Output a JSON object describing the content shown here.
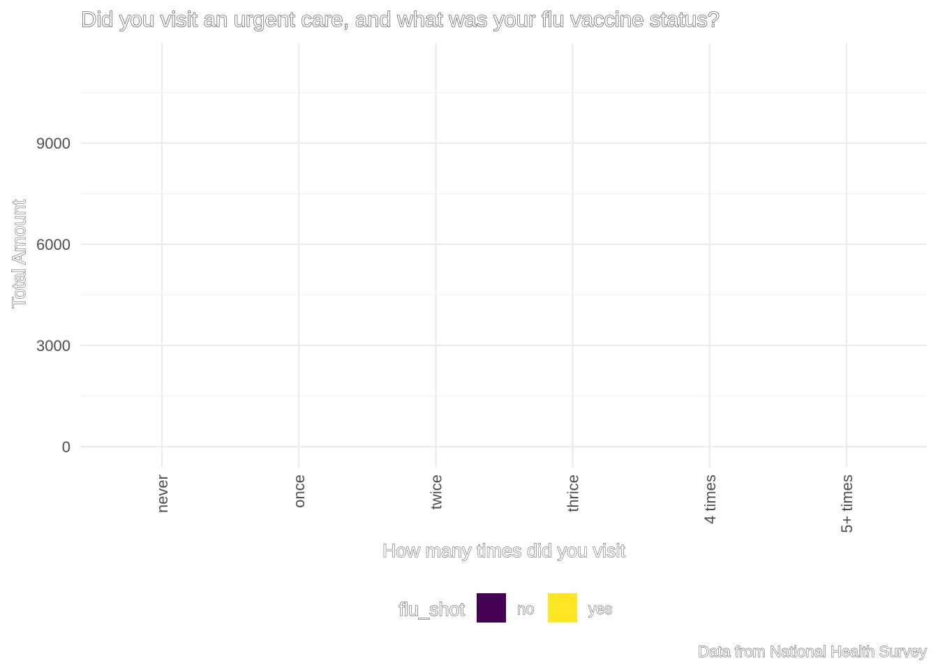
{
  "chart_data": {
    "type": "bar",
    "title": "Did you visit an urgent care, and what was your flu vaccine status?",
    "xlabel": "How many times did you visit",
    "ylabel": "Total Amount",
    "categories": [
      "never",
      "once",
      "twice",
      "thrice",
      "4 times",
      "5+ times"
    ],
    "series": [
      {
        "name": "no",
        "color": "#440154",
        "values": [
          0,
          0,
          0,
          0,
          0,
          0
        ]
      },
      {
        "name": "yes",
        "color": "#FDE725",
        "values": [
          0,
          0,
          0,
          0,
          0,
          0
        ]
      }
    ],
    "yticks": [
      0,
      3000,
      6000,
      9000
    ],
    "ytick_labels": [
      "0",
      "3000",
      "6000",
      "9000"
    ],
    "ylim": [
      -600,
      11800
    ],
    "grid": true,
    "legend": {
      "title": "flu_shot",
      "position": "bottom",
      "items": [
        {
          "label": "no",
          "color": "#440154"
        },
        {
          "label": "yes",
          "color": "#FDE725"
        }
      ]
    },
    "caption": "Data from National Health Survey"
  }
}
